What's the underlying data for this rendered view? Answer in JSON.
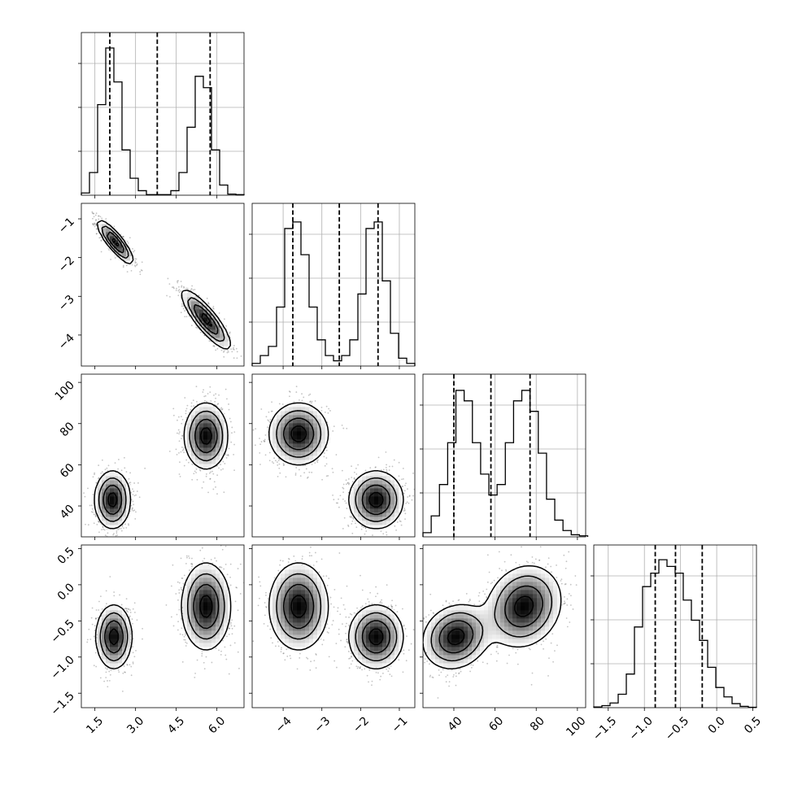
{
  "chart_data": {
    "type": "corner",
    "title": "",
    "grid": true,
    "colors": {
      "line": "#000000",
      "grid": "#b0b0b0",
      "points": "#555555",
      "density_dark": "#000000",
      "density_light": "#ffffff"
    },
    "parameters": [
      {
        "index": 0,
        "range": [
          1.0,
          7.0
        ],
        "ticks": [
          1.5,
          3.0,
          4.5,
          6.0
        ],
        "tick_labels": [
          "1.5",
          "3.0",
          "4.5",
          "6.0"
        ],
        "quantiles": [
          2.05,
          3.8,
          5.75
        ]
      },
      {
        "index": 1,
        "range": [
          -4.8,
          -0.6
        ],
        "ticks": [
          -4,
          -3,
          -2,
          -1
        ],
        "tick_labels": [
          "−4",
          "−3",
          "−2",
          "−1"
        ],
        "quantiles": [
          -3.75,
          -2.55,
          -1.55
        ]
      },
      {
        "index": 2,
        "range": [
          25,
          104
        ],
        "ticks": [
          40,
          60,
          80,
          100
        ],
        "tick_labels": [
          "40",
          "60",
          "80",
          "100"
        ],
        "quantiles": [
          40,
          58,
          77
        ]
      },
      {
        "index": 3,
        "range": [
          -1.7,
          0.55
        ],
        "ticks": [
          -1.5,
          -1.0,
          -0.5,
          0.0,
          0.5
        ],
        "tick_labels": [
          "−1.5",
          "−1.0",
          "−0.5",
          "0.0",
          "0.5"
        ],
        "quantiles": [
          -0.85,
          -0.57,
          -0.2
        ]
      }
    ],
    "histograms": [
      {
        "param": 0,
        "bins": [
          1.0,
          1.3,
          1.6,
          1.9,
          2.2,
          2.5,
          2.8,
          3.1,
          3.4,
          3.7,
          4.0,
          4.3,
          4.6,
          4.9,
          5.2,
          5.5,
          5.8,
          6.1,
          6.4,
          6.7,
          7.0
        ],
        "counts": [
          20,
          200,
          800,
          1300,
          1000,
          400,
          150,
          40,
          5,
          5,
          5,
          40,
          200,
          600,
          1050,
          950,
          400,
          90,
          10,
          5
        ],
        "ymax": 1330
      },
      {
        "param": 1,
        "bins": [
          -4.8,
          -4.59,
          -4.38,
          -4.17,
          -3.96,
          -3.75,
          -3.54,
          -3.33,
          -3.12,
          -2.91,
          -2.7,
          -2.49,
          -2.28,
          -2.07,
          -1.86,
          -1.65,
          -1.44,
          -1.23,
          -1.02,
          -0.81,
          -0.6
        ],
        "counts": [
          20,
          80,
          150,
          450,
          1050,
          1100,
          850,
          450,
          200,
          80,
          40,
          80,
          200,
          550,
          1050,
          1100,
          650,
          250,
          60,
          20
        ],
        "ymax": 1150
      },
      {
        "param": 2,
        "bins": [
          25,
          29,
          33,
          37,
          41,
          45,
          49,
          53,
          57,
          61,
          65,
          69,
          73,
          77,
          81,
          85,
          89,
          93,
          97,
          101,
          105
        ],
        "counts": [
          20,
          100,
          250,
          450,
          700,
          650,
          450,
          300,
          200,
          250,
          450,
          650,
          700,
          600,
          400,
          180,
          80,
          30,
          10,
          5
        ],
        "ymax": 720
      },
      {
        "param": 3,
        "bins": [
          -1.7,
          -1.5875,
          -1.475,
          -1.3625,
          -1.25,
          -1.1375,
          -1.025,
          -0.9125,
          -0.8,
          -0.6875,
          -0.575,
          -0.4625,
          -0.35,
          -0.2375,
          -0.125,
          -0.0125,
          0.1,
          0.2125,
          0.325,
          0.4375,
          0.55
        ],
        "counts": [
          5,
          15,
          35,
          100,
          250,
          600,
          900,
          1000,
          1100,
          1050,
          1000,
          800,
          650,
          500,
          300,
          150,
          80,
          30,
          10,
          3
        ],
        "ymax": 1120
      }
    ],
    "pairs": [
      {
        "x_param": 0,
        "y_param": 1,
        "clusters": [
          {
            "mean": [
              2.25,
              -1.6
            ],
            "sd": [
              0.33,
              0.28
            ],
            "rho": -0.85,
            "weight": 1
          },
          {
            "mean": [
              5.6,
              -3.6
            ],
            "sd": [
              0.45,
              0.38
            ],
            "rho": -0.85,
            "weight": 1
          }
        ]
      },
      {
        "x_param": 0,
        "y_param": 2,
        "clusters": [
          {
            "mean": [
              2.15,
              43
            ],
            "sd": [
              0.33,
              7
            ],
            "rho": 0.0,
            "weight": 1
          },
          {
            "mean": [
              5.6,
              74
            ],
            "sd": [
              0.4,
              8
            ],
            "rho": 0.0,
            "weight": 1
          }
        ]
      },
      {
        "x_param": 1,
        "y_param": 2,
        "clusters": [
          {
            "mean": [
              -3.6,
              75
            ],
            "sd": [
              0.38,
              7.5
            ],
            "rho": 0.0,
            "weight": 1
          },
          {
            "mean": [
              -1.6,
              43
            ],
            "sd": [
              0.35,
              7
            ],
            "rho": 0.0,
            "weight": 1
          }
        ]
      },
      {
        "x_param": 0,
        "y_param": 3,
        "clusters": [
          {
            "mean": [
              2.2,
              -0.72
            ],
            "sd": [
              0.33,
              0.22
            ],
            "rho": 0.0,
            "weight": 1
          },
          {
            "mean": [
              5.6,
              -0.3
            ],
            "sd": [
              0.45,
              0.3
            ],
            "rho": 0.0,
            "weight": 1
          }
        ]
      },
      {
        "x_param": 1,
        "y_param": 3,
        "clusters": [
          {
            "mean": [
              -3.6,
              -0.3
            ],
            "sd": [
              0.38,
              0.3
            ],
            "rho": 0.0,
            "weight": 1
          },
          {
            "mean": [
              -1.6,
              -0.72
            ],
            "sd": [
              0.35,
              0.22
            ],
            "rho": 0.0,
            "weight": 1
          }
        ]
      },
      {
        "x_param": 2,
        "y_param": 3,
        "clusters": [
          {
            "mean": [
              41,
              -0.72
            ],
            "sd": [
              8,
              0.22
            ],
            "rho": 0.15,
            "weight": 1
          },
          {
            "mean": [
              74,
              -0.3
            ],
            "sd": [
              9,
              0.28
            ],
            "rho": 0.15,
            "weight": 1
          }
        ]
      }
    ]
  }
}
